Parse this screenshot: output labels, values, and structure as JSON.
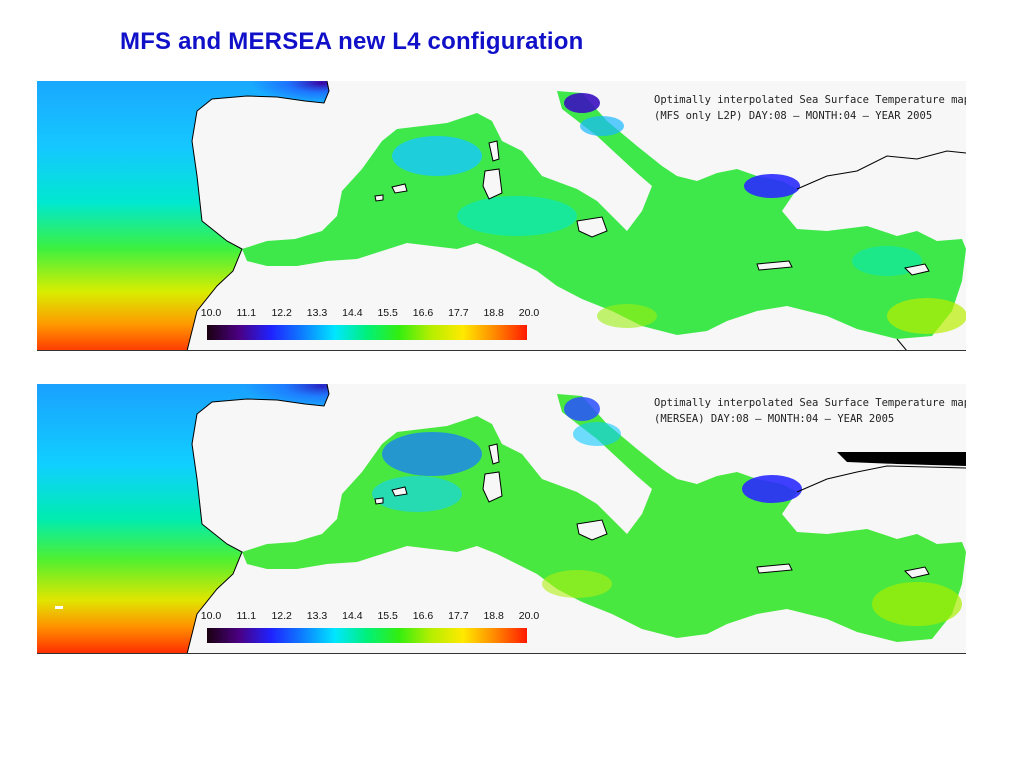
{
  "slide": {
    "title": "MFS and MERSEA new L4 configuration"
  },
  "colors": {
    "title": "#1010c8",
    "land": "#f7f7f7",
    "coast": "#000000",
    "sst_scale": [
      "#1a0010",
      "#4b0082",
      "#1f22ff",
      "#0d7fff",
      "#00e6ff",
      "#00f07a",
      "#33ee10",
      "#b5ee00",
      "#ffea00",
      "#ff8800",
      "#ff1a00"
    ]
  },
  "panels": [
    {
      "caption_line1": "Optimally interpolated Sea Surface Temperature map",
      "caption_line2": "(MFS only L2P) DAY:08 — MONTH:04 — YEAR 2005",
      "colorbar_labels": [
        "10.0",
        "11.1",
        "12.2",
        "13.3",
        "14.4",
        "15.5",
        "16.6",
        "17.7",
        "18.8",
        "20.0"
      ],
      "sst_range_C": [
        10.0,
        20.0
      ]
    },
    {
      "caption_line1": "Optimally interpolated Sea Surface Temperature map",
      "caption_line2": "(MERSEA) DAY:08 — MONTH:04 — YEAR 2005",
      "colorbar_labels": [
        "10.0",
        "11.1",
        "12.2",
        "13.3",
        "14.4",
        "15.5",
        "16.6",
        "17.7",
        "18.8",
        "20.0"
      ],
      "sst_range_C": [
        10.0,
        20.0
      ]
    }
  ]
}
